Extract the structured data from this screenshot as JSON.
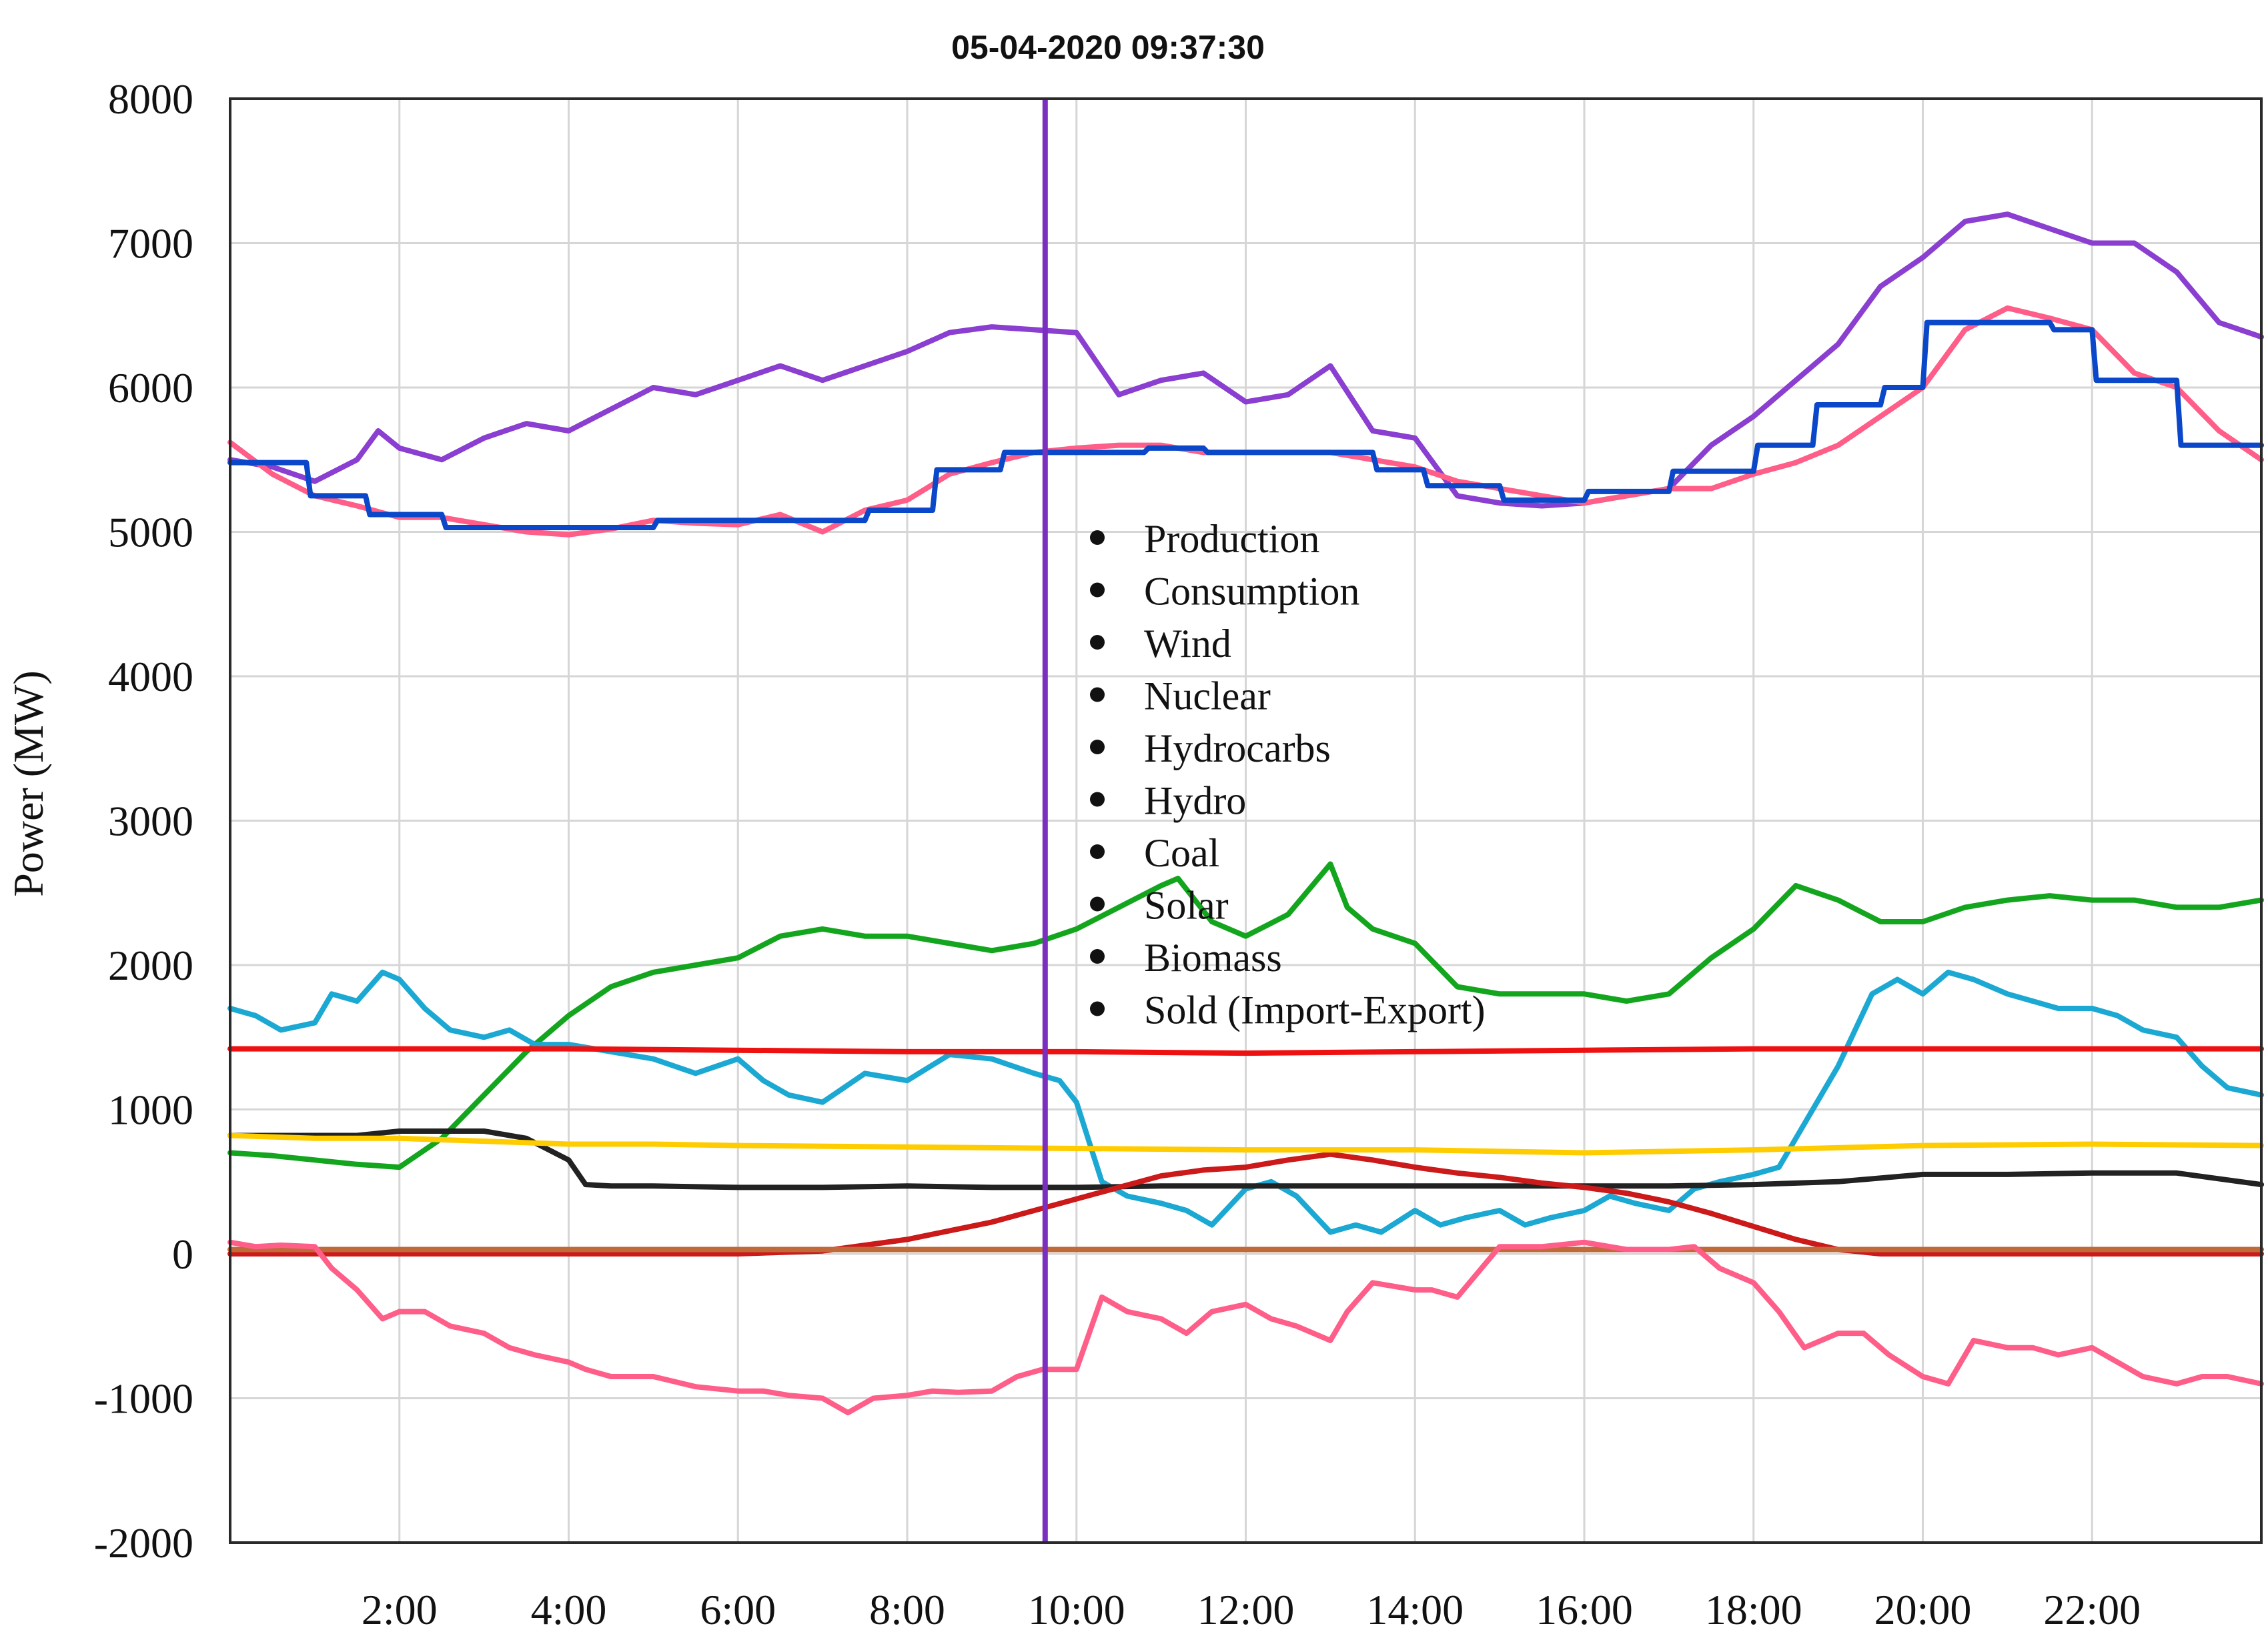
{
  "chart_data": {
    "type": "line",
    "title": "05-04-2020 09:37:30",
    "ylabel": "Power (MW)",
    "xlabel": "",
    "xlim": [
      0,
      24
    ],
    "ylim": [
      -2000,
      8000
    ],
    "yticks": [
      8000,
      7000,
      6000,
      5000,
      4000,
      3000,
      2000,
      1000,
      0,
      -1000,
      -2000
    ],
    "xticks": [
      {
        "label": "2:00",
        "value": 2
      },
      {
        "label": "4:00",
        "value": 4
      },
      {
        "label": "6:00",
        "value": 6
      },
      {
        "label": "8:00",
        "value": 8
      },
      {
        "label": "10:00",
        "value": 10
      },
      {
        "label": "12:00",
        "value": 12
      },
      {
        "label": "14:00",
        "value": 14
      },
      {
        "label": "16:00",
        "value": 16
      },
      {
        "label": "18:00",
        "value": 18
      },
      {
        "label": "20:00",
        "value": 20
      },
      {
        "label": "22:00",
        "value": 22
      }
    ],
    "grid": true,
    "marker_time": 9.63,
    "marker_color": "#7b2fbe",
    "legend_position": "center",
    "legend": [
      "Production",
      "Consumption",
      "Wind",
      "Nuclear",
      "Hydrocarbs",
      "Hydro",
      "Coal",
      "Solar",
      "Biomass",
      "Sold (Import-Export)"
    ],
    "series": [
      {
        "color": "#8a3fd1",
        "x": [
          0,
          0.5,
          1,
          1.5,
          1.75,
          2,
          2.5,
          3,
          3.5,
          4,
          4.5,
          5,
          5.5,
          6,
          6.5,
          7,
          7.5,
          8,
          8.5,
          9,
          9.5,
          10,
          10.5,
          11,
          11.5,
          12,
          12.5,
          13,
          13.5,
          14,
          14.5,
          15,
          15.5,
          16,
          16.5,
          17,
          17.5,
          18,
          18.5,
          19,
          19.5,
          20,
          20.5,
          21,
          21.5,
          22,
          22.5,
          23,
          23.5,
          24
        ],
        "y": [
          5500,
          5450,
          5350,
          5500,
          5700,
          5580,
          5500,
          5650,
          5750,
          5700,
          5850,
          6000,
          5950,
          6050,
          6150,
          6050,
          6150,
          6250,
          6380,
          6420,
          6400,
          6380,
          5950,
          6050,
          6100,
          5900,
          5950,
          6150,
          5700,
          5650,
          5250,
          5200,
          5180,
          5200,
          5250,
          5300,
          5600,
          5800,
          6050,
          6300,
          6700,
          6900,
          7150,
          7200,
          7100,
          7000,
          7000,
          6800,
          6450,
          6350
        ]
      },
      {
        "color": "#ff5e89",
        "x": [
          0,
          0.5,
          1,
          1.5,
          2,
          2.5,
          3,
          3.5,
          4,
          4.5,
          5,
          5.5,
          6,
          6.5,
          7,
          7.5,
          8,
          8.5,
          9,
          9.5,
          10,
          10.5,
          11,
          11.5,
          12,
          12.5,
          13,
          13.5,
          14,
          14.5,
          15,
          15.5,
          16,
          16.5,
          17,
          17.5,
          18,
          18.5,
          19,
          19.5,
          20,
          20.5,
          21,
          21.5,
          22,
          22.5,
          23,
          23.5,
          24
        ],
        "y": [
          5620,
          5400,
          5250,
          5180,
          5100,
          5100,
          5050,
          5000,
          4980,
          5020,
          5080,
          5060,
          5050,
          5120,
          5000,
          5150,
          5220,
          5400,
          5480,
          5550,
          5580,
          5600,
          5600,
          5550,
          5550,
          5550,
          5550,
          5500,
          5450,
          5350,
          5300,
          5250,
          5200,
          5250,
          5300,
          5300,
          5400,
          5480,
          5600,
          5800,
          6000,
          6400,
          6550,
          6480,
          6400,
          6100,
          6000,
          5700,
          5500
        ]
      },
      {
        "color": "#0a47c9",
        "x": [
          0,
          0.9,
          0.95,
          1.6,
          1.65,
          2.5,
          2.55,
          3.5,
          3.55,
          4.2,
          4.25,
          5,
          5.05,
          6.5,
          6.55,
          7.5,
          7.55,
          8.3,
          8.35,
          9.1,
          9.15,
          9.9,
          9.95,
          10.8,
          10.85,
          11.5,
          11.55,
          12.2,
          12.25,
          13.5,
          13.55,
          14.1,
          14.15,
          15,
          15.05,
          16,
          16.05,
          17,
          17.05,
          18,
          18.05,
          18.7,
          18.75,
          19.5,
          19.55,
          20,
          20.05,
          21.5,
          21.55,
          22,
          22.05,
          23,
          23.05,
          24
        ],
        "y": [
          5480,
          5480,
          5250,
          5250,
          5120,
          5120,
          5030,
          5030,
          5030,
          5030,
          5030,
          5030,
          5080,
          5080,
          5080,
          5080,
          5150,
          5150,
          5430,
          5430,
          5550,
          5550,
          5550,
          5550,
          5580,
          5580,
          5550,
          5550,
          5550,
          5550,
          5430,
          5430,
          5320,
          5320,
          5220,
          5220,
          5280,
          5280,
          5420,
          5420,
          5600,
          5600,
          5880,
          5880,
          6000,
          6000,
          6450,
          6450,
          6400,
          6400,
          6050,
          6050,
          5600,
          5600
        ]
      },
      {
        "color": "#13a51d",
        "x": [
          0,
          0.5,
          1,
          1.5,
          2,
          2.5,
          3,
          3.5,
          4,
          4.5,
          5,
          5.5,
          6,
          6.5,
          7,
          7.5,
          8,
          8.5,
          9,
          9.5,
          10,
          10.5,
          11,
          11.2,
          11.6,
          12,
          12.5,
          13,
          13.2,
          13.5,
          14,
          14.5,
          15,
          15.5,
          16,
          16.5,
          17,
          17.5,
          18,
          18.5,
          19,
          19.5,
          20,
          20.5,
          21,
          21.5,
          22,
          22.5,
          23,
          23.5,
          24
        ],
        "y": [
          700,
          680,
          650,
          620,
          600,
          800,
          1100,
          1400,
          1650,
          1850,
          1950,
          2000,
          2050,
          2200,
          2250,
          2200,
          2200,
          2150,
          2100,
          2150,
          2250,
          2400,
          2550,
          2600,
          2300,
          2200,
          2350,
          2700,
          2400,
          2250,
          2150,
          1850,
          1800,
          1800,
          1800,
          1750,
          1800,
          2050,
          2250,
          2550,
          2450,
          2300,
          2300,
          2400,
          2450,
          2480,
          2450,
          2450,
          2400,
          2400,
          2450
        ]
      },
      {
        "color": "#1ba8d2",
        "x": [
          0,
          0.3,
          0.6,
          1,
          1.2,
          1.5,
          1.8,
          2,
          2.3,
          2.6,
          3,
          3.3,
          3.6,
          4,
          4.5,
          5,
          5.5,
          6,
          6.3,
          6.6,
          7,
          7.5,
          8,
          8.5,
          9,
          9.5,
          9.8,
          10,
          10.3,
          10.6,
          11,
          11.3,
          11.6,
          12,
          12.3,
          12.6,
          13,
          13.3,
          13.6,
          14,
          14.3,
          14.6,
          15,
          15.3,
          15.6,
          16,
          16.3,
          16.6,
          17,
          17.3,
          17.6,
          18,
          18.3,
          18.6,
          19,
          19.4,
          19.7,
          20,
          20.3,
          20.6,
          21,
          21.3,
          21.6,
          22,
          22.3,
          22.6,
          23,
          23.3,
          23.6,
          24
        ],
        "y": [
          1700,
          1650,
          1550,
          1600,
          1800,
          1750,
          1950,
          1900,
          1700,
          1550,
          1500,
          1550,
          1450,
          1450,
          1400,
          1350,
          1250,
          1350,
          1200,
          1100,
          1050,
          1250,
          1200,
          1380,
          1350,
          1250,
          1200,
          1050,
          500,
          400,
          350,
          300,
          200,
          450,
          500,
          400,
          150,
          200,
          150,
          300,
          200,
          250,
          300,
          200,
          250,
          300,
          400,
          350,
          300,
          450,
          500,
          550,
          600,
          900,
          1300,
          1800,
          1900,
          1800,
          1950,
          1900,
          1800,
          1750,
          1700,
          1700,
          1650,
          1550,
          1500,
          1300,
          1150,
          1100
        ]
      },
      {
        "color": "#ee1111",
        "x": [
          0,
          4,
          8,
          10,
          12,
          14,
          16,
          18,
          20,
          24
        ],
        "y": [
          1420,
          1420,
          1400,
          1400,
          1390,
          1400,
          1410,
          1420,
          1420,
          1420
        ]
      },
      {
        "color": "#222222",
        "x": [
          0,
          0.5,
          1,
          1.5,
          2,
          2.5,
          3,
          3.5,
          4,
          4.2,
          4.5,
          5,
          6,
          7,
          8,
          9,
          10,
          11,
          12,
          13,
          14,
          15,
          16,
          17,
          18,
          19,
          20,
          21,
          22,
          23,
          24
        ],
        "y": [
          820,
          820,
          820,
          820,
          850,
          850,
          850,
          800,
          650,
          480,
          470,
          470,
          460,
          460,
          470,
          460,
          460,
          470,
          470,
          470,
          470,
          470,
          470,
          470,
          480,
          500,
          550,
          550,
          560,
          560,
          480
        ]
      },
      {
        "color": "#cc1a1a",
        "x": [
          0,
          6,
          7,
          8,
          9,
          10,
          10.5,
          11,
          11.5,
          12,
          12.5,
          13,
          13.5,
          14,
          14.5,
          15,
          15.5,
          16,
          16.5,
          17,
          17.5,
          18,
          18.5,
          19,
          19.5,
          20,
          21,
          24
        ],
        "y": [
          0,
          0,
          20,
          100,
          220,
          380,
          460,
          540,
          580,
          600,
          650,
          690,
          650,
          600,
          560,
          530,
          490,
          460,
          420,
          360,
          280,
          190,
          100,
          30,
          0,
          0,
          0,
          0
        ]
      },
      {
        "color": "#ffcc00",
        "x": [
          0,
          1,
          2,
          3,
          4,
          5,
          6,
          8,
          10,
          12,
          14,
          16,
          18,
          20,
          22,
          24
        ],
        "y": [
          820,
          800,
          800,
          780,
          760,
          760,
          750,
          740,
          730,
          720,
          720,
          700,
          720,
          750,
          760,
          750
        ]
      },
      {
        "color": "#c06a3a",
        "x": [
          0,
          4,
          8,
          12,
          16,
          20,
          24
        ],
        "y": [
          30,
          30,
          30,
          30,
          30,
          30,
          30
        ]
      },
      {
        "color": "#ff5e89",
        "x": [
          0,
          0.3,
          0.6,
          1,
          1.2,
          1.5,
          1.8,
          2,
          2.3,
          2.6,
          3,
          3.3,
          3.6,
          4,
          4.2,
          4.5,
          5,
          5.5,
          6,
          6.3,
          6.6,
          7,
          7.3,
          7.6,
          8,
          8.3,
          8.6,
          9,
          9.3,
          9.6,
          10,
          10.3,
          10.6,
          11,
          11.3,
          11.6,
          12,
          12.3,
          12.6,
          13,
          13.2,
          13.5,
          14,
          14.2,
          14.5,
          15,
          15.5,
          16,
          16.5,
          17,
          17.3,
          17.6,
          18,
          18.3,
          18.6,
          19,
          19.3,
          19.6,
          20,
          20.3,
          20.6,
          21,
          21.3,
          21.6,
          22,
          22.3,
          22.6,
          23,
          23.3,
          23.6,
          24
        ],
        "y": [
          80,
          50,
          60,
          50,
          -100,
          -250,
          -450,
          -400,
          -400,
          -500,
          -550,
          -650,
          -700,
          -750,
          -800,
          -850,
          -850,
          -920,
          -950,
          -950,
          -980,
          -1000,
          -1100,
          -1000,
          -980,
          -950,
          -960,
          -950,
          -850,
          -800,
          -800,
          -300,
          -400,
          -450,
          -550,
          -400,
          -350,
          -450,
          -500,
          -600,
          -400,
          -200,
          -250,
          -250,
          -300,
          50,
          50,
          80,
          30,
          30,
          50,
          -100,
          -200,
          -400,
          -650,
          -550,
          -550,
          -700,
          -850,
          -900,
          -600,
          -650,
          -650,
          -700,
          -650,
          -750,
          -850,
          -900,
          -850,
          -850,
          -900
        ]
      }
    ]
  }
}
